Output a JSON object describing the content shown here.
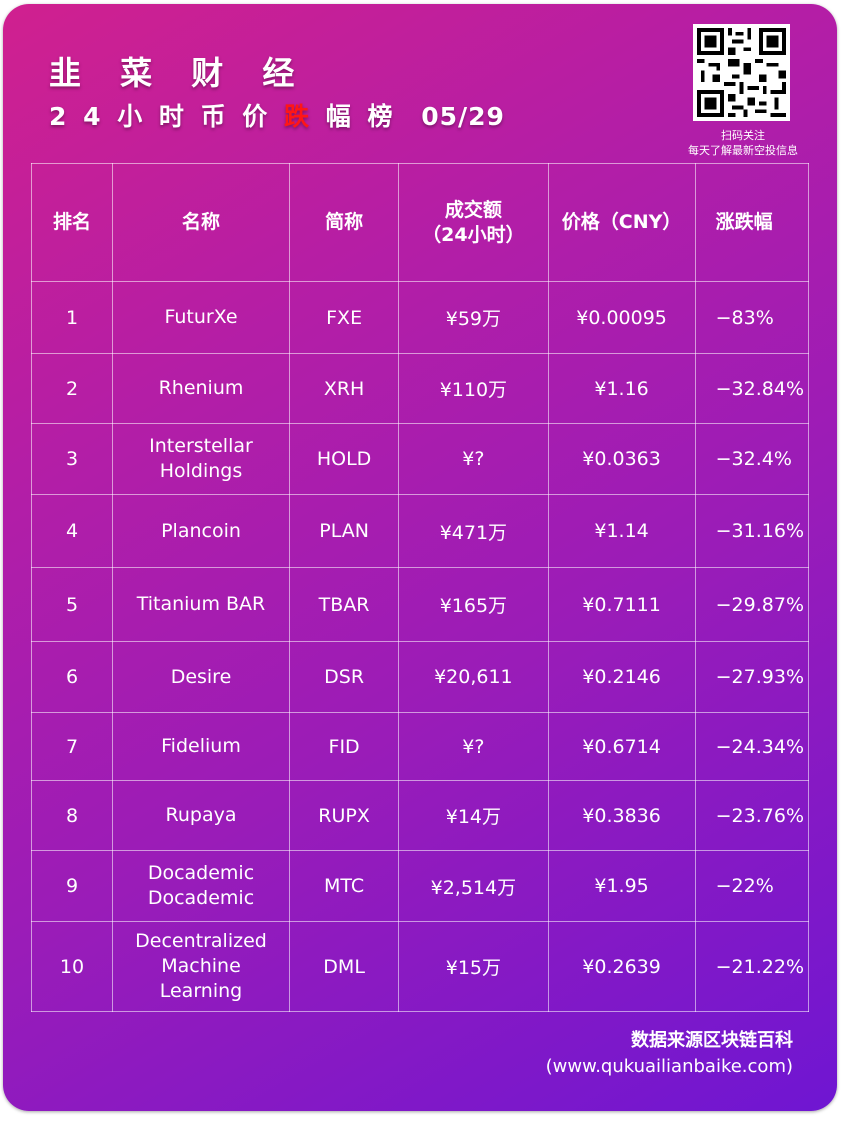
{
  "header": {
    "brand": "韭 菜 财 经",
    "subtitle_prefix": "2 4 小 时 币 价",
    "subtitle_highlight": "跌",
    "subtitle_suffix": "幅 榜",
    "date": "05/29"
  },
  "qr": {
    "caption_line1": "扫码关注",
    "caption_line2": "每天了解最新空投信息"
  },
  "table": {
    "headers": {
      "rank": "排名",
      "name": "名称",
      "symbol": "简称",
      "volume_line1": "成交额",
      "volume_line2": "（24小时）",
      "price": "价格（CNY）",
      "change": "涨跌幅"
    },
    "rows": [
      {
        "rank": "1",
        "name": "FuturXe",
        "symbol": "FXE",
        "volume": "¥59万",
        "price": "¥0.00095",
        "change": "−83%"
      },
      {
        "rank": "2",
        "name": "Rhenium",
        "symbol": "XRH",
        "volume": "¥110万",
        "price": "¥1.16",
        "change": "−32.84%"
      },
      {
        "rank": "3",
        "name": "Interstellar Holdings",
        "symbol": "HOLD",
        "volume": "¥?",
        "price": "¥0.0363",
        "change": "−32.4%"
      },
      {
        "rank": "4",
        "name": "Plancoin",
        "symbol": "PLAN",
        "volume": "¥471万",
        "price": "¥1.14",
        "change": "−31.16%"
      },
      {
        "rank": "5",
        "name": "Titanium BAR",
        "symbol": "TBAR",
        "volume": "¥165万",
        "price": "¥0.7111",
        "change": "−29.87%"
      },
      {
        "rank": "6",
        "name": "Desire",
        "symbol": "DSR",
        "volume": "¥20,611",
        "price": "¥0.2146",
        "change": "−27.93%"
      },
      {
        "rank": "7",
        "name": "Fidelium",
        "symbol": "FID",
        "volume": "¥?",
        "price": "¥0.6714",
        "change": "−24.34%"
      },
      {
        "rank": "8",
        "name": "Rupaya",
        "symbol": "RUPX",
        "volume": "¥14万",
        "price": "¥0.3836",
        "change": "−23.76%"
      },
      {
        "rank": "9",
        "name": "Docademic Docademic",
        "symbol": "MTC",
        "volume": "¥2,514万",
        "price": "¥1.95",
        "change": "−22%"
      },
      {
        "rank": "10",
        "name": "Decentralized Machine Learning",
        "symbol": "DML",
        "volume": "¥15万",
        "price": "¥0.2639",
        "change": "−21.22%"
      }
    ]
  },
  "footer": {
    "source_label": "数据来源区块链百科",
    "source_url": "(www.qukuailianbaike.com)"
  },
  "colors": {
    "background_start": "#d0208f",
    "background_end": "#6f16d2",
    "highlight": "#ff1616",
    "text": "#ffffff"
  }
}
